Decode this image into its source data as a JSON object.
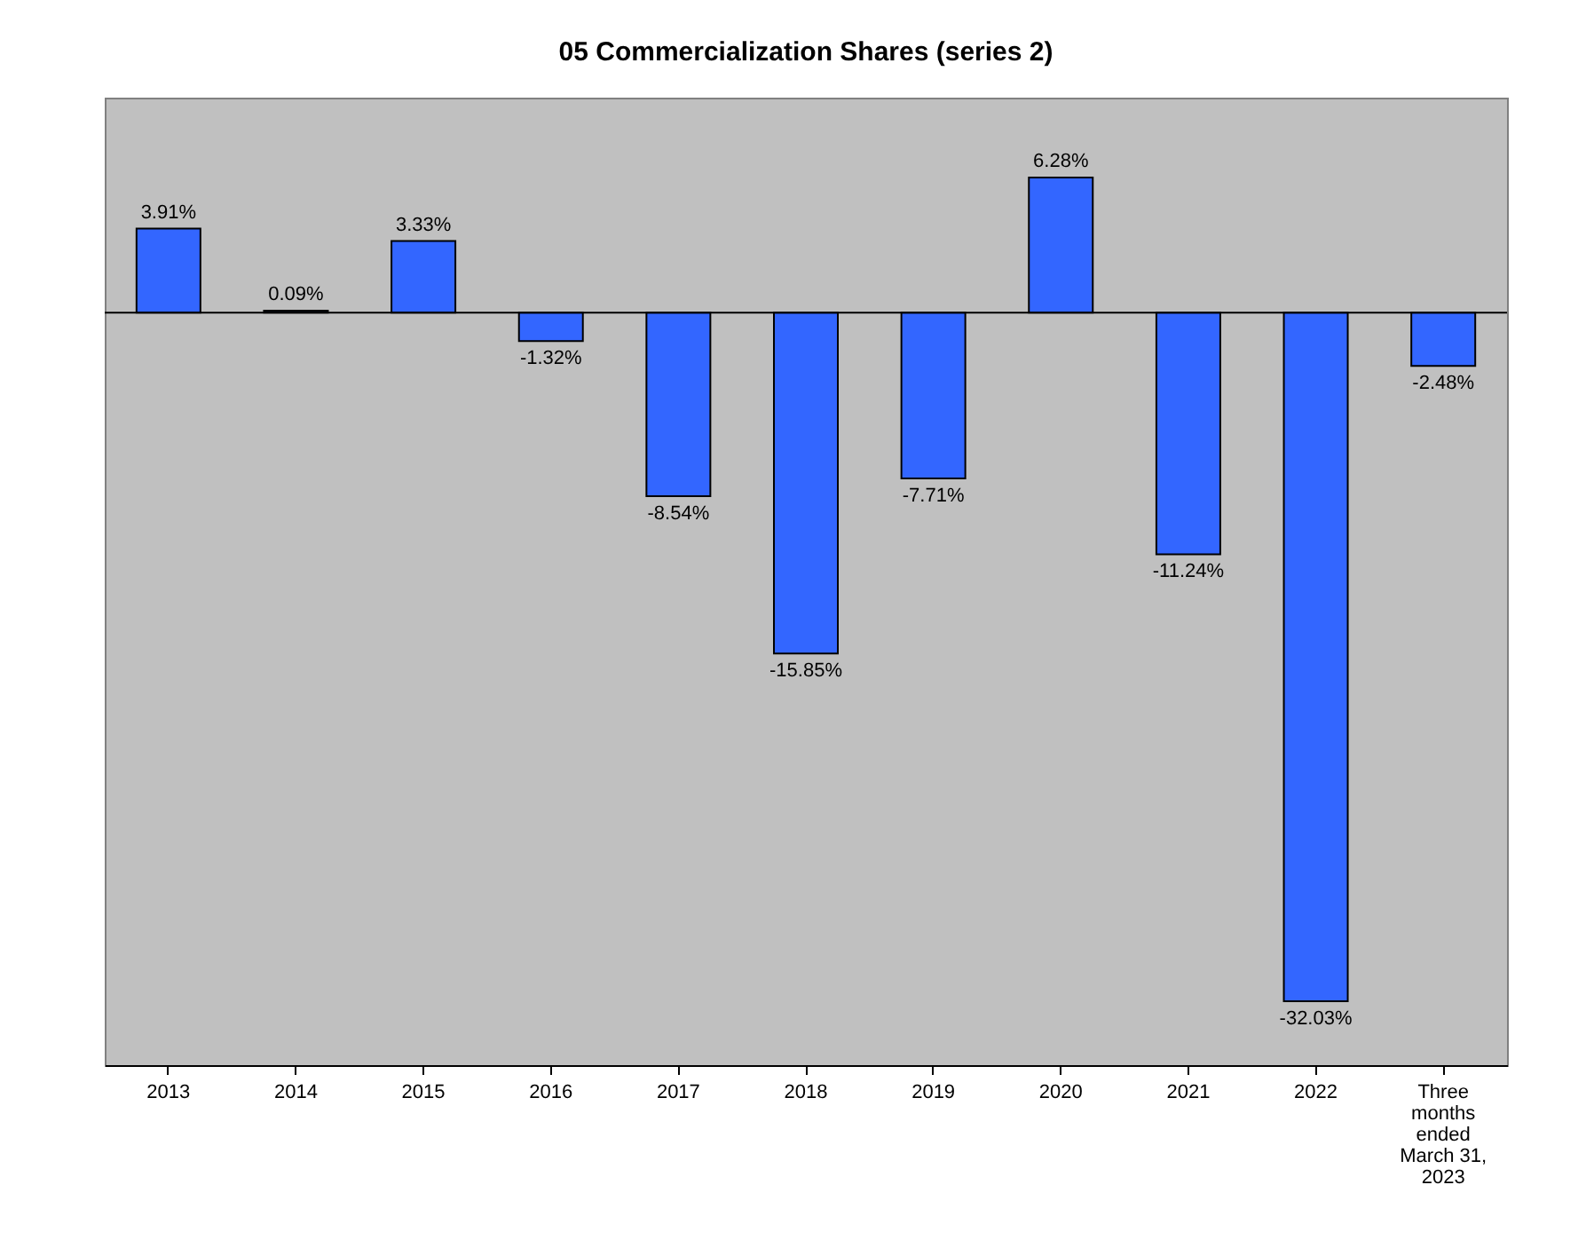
{
  "chart_data": {
    "type": "bar",
    "title": "05 Commercialization Shares (series 2)",
    "categories": [
      "2013",
      "2014",
      "2015",
      "2016",
      "2017",
      "2018",
      "2019",
      "2020",
      "2021",
      "2022",
      "Three months ended March 31, 2023"
    ],
    "values": [
      3.91,
      0.09,
      3.33,
      -1.32,
      -8.54,
      -15.85,
      -7.71,
      6.28,
      -11.24,
      -32.03,
      -2.48
    ],
    "value_labels": [
      "3.91%",
      "0.09%",
      "3.33%",
      "-1.32%",
      "-8.54%",
      "-15.85%",
      "-7.71%",
      "6.28%",
      "-11.24%",
      "-32.03%",
      "-2.48%"
    ],
    "color": "#3366ff",
    "ylim": [
      -35,
      10
    ],
    "tick_labels": "x",
    "grid": false
  }
}
